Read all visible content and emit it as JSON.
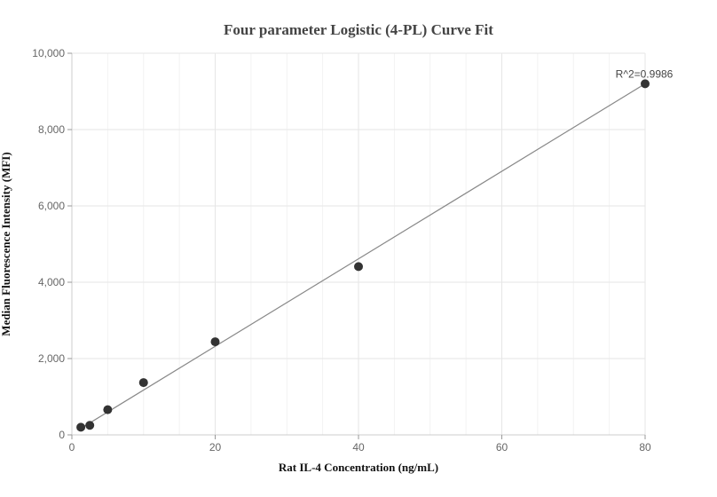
{
  "chart_data": {
    "type": "scatter",
    "title": "Four parameter Logistic (4-PL) Curve Fit",
    "xlabel": "Rat IL-4 Concentration (ng/mL)",
    "ylabel": "Median Fluorescence Intensity (MFI)",
    "xlim": [
      0,
      80
    ],
    "ylim": [
      0,
      10000
    ],
    "x_ticks": [
      0,
      20,
      40,
      60,
      80
    ],
    "x_tick_labels": [
      "0",
      "20",
      "40",
      "60",
      "80"
    ],
    "y_ticks": [
      0,
      2000,
      4000,
      6000,
      8000,
      10000
    ],
    "y_tick_labels": [
      "0",
      "2,000",
      "4,000",
      "6,000",
      "8,000",
      "10,000"
    ],
    "grid": true,
    "series": [
      {
        "x": [
          1.25,
          2.5,
          5,
          10,
          20,
          40,
          80
        ],
        "y": [
          200,
          250,
          660,
          1370,
          2440,
          4410,
          9200
        ]
      }
    ],
    "fit_line": {
      "x": [
        1.25,
        80
      ],
      "y": [
        170,
        9200
      ]
    },
    "annotation": {
      "text": "R^2=0.9986",
      "x": 80,
      "y": 9200
    },
    "colors": {
      "points": "#333333",
      "fit_line": "#888888",
      "grid": "#e6e6e6"
    }
  }
}
